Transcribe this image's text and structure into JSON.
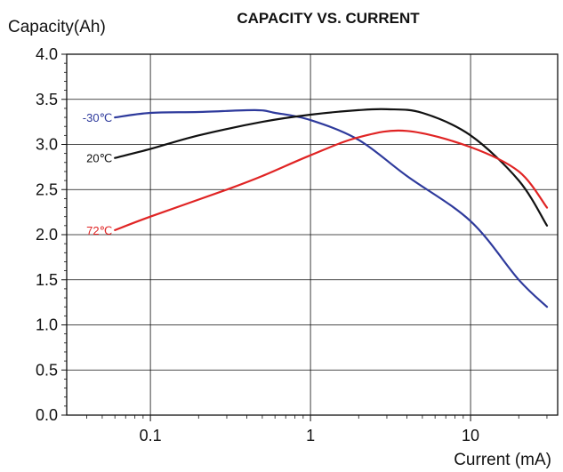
{
  "chart_data": {
    "type": "line",
    "title": "CAPACITY VS. CURRENT",
    "ylabel": "Capacity(Ah)",
    "xlabel": "Current (mA)",
    "x_scale": "log",
    "xlim": [
      0.03,
      35
    ],
    "ylim": [
      0.0,
      4.0
    ],
    "grid": true,
    "x_ticks": [
      0.1,
      1,
      10
    ],
    "x_tick_labels": [
      "0.1",
      "1",
      "10"
    ],
    "y_ticks": [
      0.0,
      0.5,
      1.0,
      1.5,
      2.0,
      2.5,
      3.0,
      3.5,
      4.0
    ],
    "y_tick_labels": [
      "0.0",
      "0.5",
      "1.0",
      "1.5",
      "2.0",
      "2.5",
      "3.0",
      "3.5",
      "4.0"
    ],
    "series": [
      {
        "name": "-30℃",
        "color": "#2e3a9c",
        "x": [
          0.06,
          0.1,
          0.2,
          0.45,
          0.6,
          1.0,
          2.0,
          4.0,
          10.0,
          20.0,
          30.0
        ],
        "y": [
          3.3,
          3.35,
          3.36,
          3.38,
          3.35,
          3.27,
          3.05,
          2.65,
          2.15,
          1.5,
          1.2
        ]
      },
      {
        "name": "20℃",
        "color": "#111111",
        "x": [
          0.06,
          0.1,
          0.2,
          0.5,
          1.0,
          2.0,
          3.0,
          5.0,
          10.0,
          20.0,
          30.0
        ],
        "y": [
          2.85,
          2.95,
          3.1,
          3.25,
          3.33,
          3.38,
          3.39,
          3.35,
          3.1,
          2.6,
          2.1
        ]
      },
      {
        "name": "72℃",
        "color": "#e02424",
        "x": [
          0.06,
          0.1,
          0.3,
          0.5,
          1.0,
          2.0,
          4.0,
          10.0,
          20.0,
          30.0
        ],
        "y": [
          2.05,
          2.2,
          2.5,
          2.65,
          2.88,
          3.08,
          3.15,
          2.97,
          2.7,
          2.3
        ]
      }
    ]
  }
}
